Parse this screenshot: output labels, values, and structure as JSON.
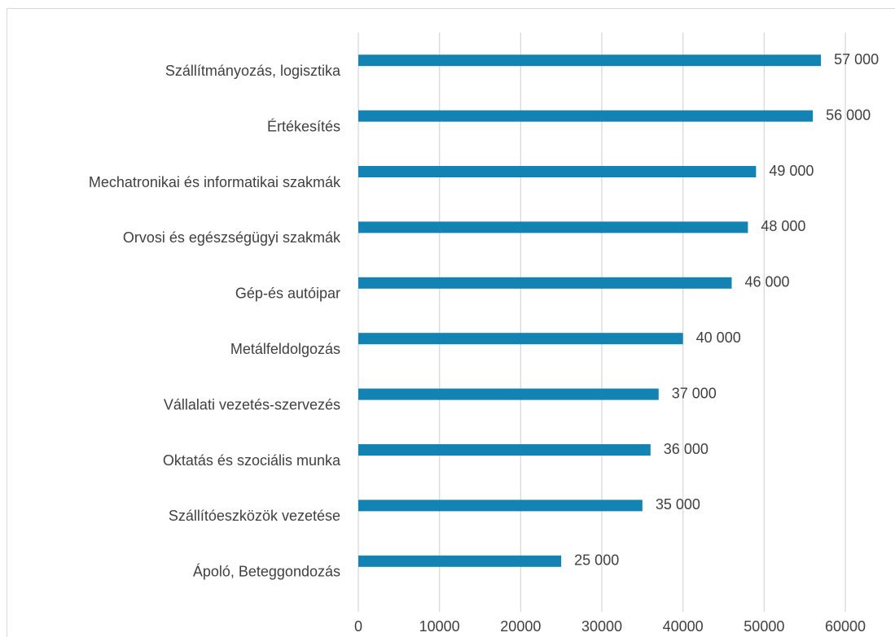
{
  "chart_data": {
    "type": "bar",
    "orientation": "horizontal",
    "categories": [
      "Szállítmányozás, logisztika",
      "Értékesítés",
      "Mechatronikai és informatikai szakmák",
      "Orvosi és egészségügyi szakmák",
      "Gép-és autóipar",
      "Metálfeldolgozás",
      "Vállalati vezetés-szervezés",
      "Oktatás és szociális munka",
      "Szállítóeszközök vezetése",
      "Ápoló, Beteggondozás"
    ],
    "values": [
      57000,
      56000,
      49000,
      48000,
      46000,
      40000,
      37000,
      36000,
      35000,
      25000
    ],
    "value_labels": [
      "57 000",
      "56 000",
      "49 000",
      "48 000",
      "46 000",
      "40 000",
      "37 000",
      "36 000",
      "35 000",
      "25 000"
    ],
    "color": "#1283b3",
    "xlim": [
      0,
      60000
    ],
    "xticks": [
      0,
      10000,
      20000,
      30000,
      40000,
      50000,
      60000
    ],
    "grid": true
  }
}
